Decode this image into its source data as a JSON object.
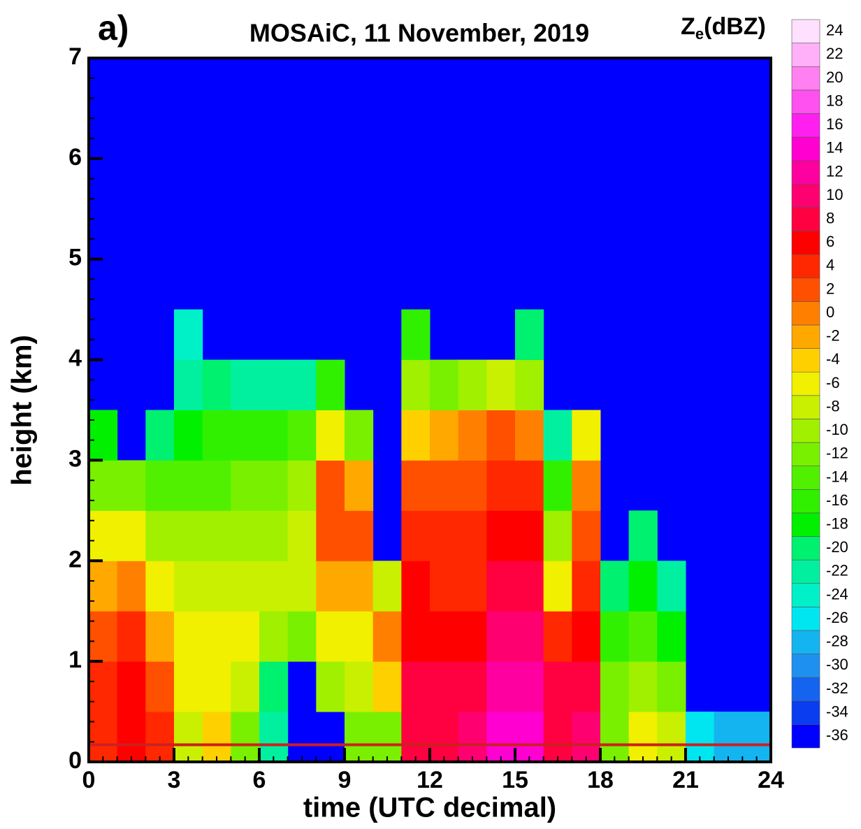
{
  "chart_data": {
    "type": "heatmap",
    "panel_label": "a)",
    "title": "MOSAiC, 11 November, 2019",
    "x_label": "time (UTC decimal)",
    "y_label": "height (km)",
    "xlim": [
      0,
      24
    ],
    "xticks": [
      0,
      3,
      6,
      9,
      12,
      15,
      18,
      21,
      24
    ],
    "ylim": [
      0,
      7
    ],
    "yticks": [
      0,
      1,
      2,
      3,
      4,
      5,
      6,
      7
    ],
    "background_color": "#0000ff",
    "reference_line": {
      "value": 0.17,
      "color": "#cc2020"
    },
    "time_bins": [
      0,
      1,
      2,
      3,
      4,
      5,
      6,
      7,
      8,
      9,
      10,
      11,
      12,
      13,
      14,
      15,
      16,
      17,
      18,
      19,
      20,
      21,
      22,
      23,
      24
    ],
    "height_bins": [
      0,
      0.5,
      1,
      1.5,
      2,
      2.5,
      3,
      3.5,
      4,
      4.5,
      5,
      5.5,
      6,
      6.5,
      7
    ],
    "z": [
      [
        4,
        4,
        2,
        -2,
        -6,
        -12,
        -18,
        null,
        null,
        null,
        null,
        null,
        null,
        null
      ],
      [
        6,
        6,
        4,
        0,
        -6,
        -12,
        null,
        null,
        null,
        null,
        null,
        null,
        null,
        null
      ],
      [
        4,
        2,
        -2,
        -6,
        -10,
        -14,
        -20,
        null,
        null,
        null,
        null,
        null,
        null,
        null
      ],
      [
        -8,
        -6,
        -6,
        -8,
        -10,
        -14,
        -18,
        -22,
        -24,
        null,
        null,
        null,
        null,
        null
      ],
      [
        -4,
        -6,
        -6,
        -8,
        -10,
        -14,
        -16,
        -20,
        null,
        null,
        null,
        null,
        null,
        null
      ],
      [
        -12,
        -8,
        -6,
        -8,
        -10,
        -12,
        -16,
        -22,
        null,
        null,
        null,
        null,
        null,
        null
      ],
      [
        -22,
        -20,
        -10,
        -8,
        -10,
        -12,
        -16,
        -22,
        null,
        null,
        null,
        null,
        null,
        null
      ],
      [
        null,
        null,
        -12,
        -8,
        -8,
        -10,
        -14,
        -22,
        null,
        null,
        null,
        null,
        null,
        null
      ],
      [
        null,
        -10,
        -6,
        -2,
        2,
        2,
        -6,
        -16,
        null,
        null,
        null,
        null,
        null,
        null
      ],
      [
        -12,
        -8,
        -6,
        -2,
        2,
        -2,
        -12,
        null,
        null,
        null,
        null,
        null,
        null,
        null
      ],
      [
        -12,
        -4,
        0,
        -8,
        null,
        null,
        null,
        null,
        null,
        null,
        null,
        null,
        null,
        null
      ],
      [
        8,
        8,
        6,
        6,
        4,
        2,
        -4,
        -10,
        -16,
        null,
        null,
        null,
        null,
        null
      ],
      [
        8,
        8,
        6,
        4,
        4,
        2,
        -2,
        -12,
        null,
        null,
        null,
        null,
        null,
        null
      ],
      [
        10,
        8,
        6,
        4,
        4,
        2,
        0,
        -10,
        null,
        null,
        null,
        null,
        null,
        null
      ],
      [
        14,
        12,
        10,
        8,
        6,
        4,
        2,
        -8,
        null,
        null,
        null,
        null,
        null,
        null
      ],
      [
        14,
        12,
        10,
        8,
        6,
        4,
        0,
        -10,
        -20,
        null,
        null,
        null,
        null,
        null
      ],
      [
        8,
        8,
        4,
        -6,
        -10,
        -16,
        -22,
        null,
        null,
        null,
        null,
        null,
        null,
        null
      ],
      [
        10,
        8,
        6,
        4,
        2,
        0,
        -6,
        null,
        null,
        null,
        null,
        null,
        null,
        null
      ],
      [
        -12,
        -12,
        -16,
        -20,
        null,
        null,
        null,
        null,
        null,
        null,
        null,
        null,
        null,
        null
      ],
      [
        -6,
        -10,
        -14,
        -18,
        -20,
        null,
        null,
        null,
        null,
        null,
        null,
        null,
        null,
        null
      ],
      [
        -8,
        -12,
        -18,
        -22,
        null,
        null,
        null,
        null,
        null,
        null,
        null,
        null,
        null,
        null
      ],
      [
        -26,
        null,
        null,
        null,
        null,
        null,
        null,
        null,
        null,
        null,
        null,
        null,
        null,
        null
      ],
      [
        -28,
        null,
        null,
        null,
        null,
        null,
        null,
        null,
        null,
        null,
        null,
        null,
        null,
        null
      ],
      [
        -28,
        null,
        null,
        null,
        null,
        null,
        null,
        null,
        null,
        null,
        null,
        null,
        null,
        null
      ]
    ],
    "colorbar": {
      "label": {
        "symbol": "Z",
        "subscript": "e",
        "unit": "(dBZ)"
      },
      "levels": [
        -36,
        -34,
        -32,
        -30,
        -28,
        -26,
        -24,
        -22,
        -20,
        -18,
        -16,
        -14,
        -12,
        -10,
        -8,
        -6,
        -4,
        -2,
        0,
        2,
        4,
        6,
        8,
        10,
        12,
        14,
        16,
        18,
        20,
        22,
        24
      ],
      "colors": [
        "#0000ff",
        "#0a3cf0",
        "#1464f0",
        "#1e90f0",
        "#14b4f0",
        "#00e6f0",
        "#00f0c8",
        "#00f0a0",
        "#00f070",
        "#00f000",
        "#30f000",
        "#50f000",
        "#78f000",
        "#a0f000",
        "#c8f000",
        "#f0f000",
        "#ffd000",
        "#ffa800",
        "#ff8000",
        "#ff5000",
        "#ff2800",
        "#ff0000",
        "#ff0040",
        "#ff0070",
        "#ff00a0",
        "#ff00d0",
        "#ff20f0",
        "#ff50f0",
        "#ff80f0",
        "#ffb0f8",
        "#ffe0ff"
      ]
    }
  }
}
